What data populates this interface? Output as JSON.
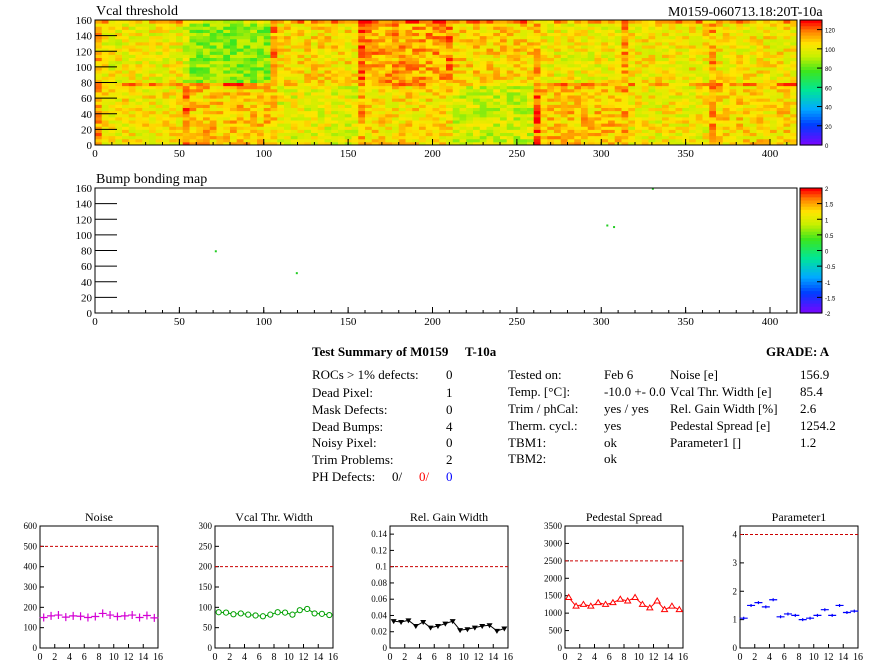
{
  "header": {
    "module_id": "M0159-060713.18:20T-10a"
  },
  "colors": {
    "red": "#ff0000",
    "blue": "#0000ff",
    "magenta": "#d400d4",
    "green": "#00a000",
    "black": "#000000",
    "dashed": "#cc0000"
  },
  "summary": {
    "title": "Test Summary of M0159",
    "temp_tag": "T-10a",
    "grade": "GRADE:  A",
    "left": [
      {
        "label": "ROCs > 1% defects:",
        "value": "0"
      },
      {
        "label": "Dead Pixel:",
        "value": "1"
      },
      {
        "label": "Mask Defects:",
        "value": "0"
      },
      {
        "label": "Dead Bumps:",
        "value": "4"
      },
      {
        "label": "Noisy Pixel:",
        "value": "0"
      },
      {
        "label": "Trim Problems:",
        "value": "2"
      }
    ],
    "ph": {
      "label": "PH Defects:",
      "v1": "0/",
      "v2": "0/",
      "v3": "0"
    },
    "middle": [
      {
        "label": "Tested on:",
        "value": "Feb 6"
      },
      {
        "label": "Temp. [°C]:",
        "value": "-10.0 +- 0.0"
      },
      {
        "label": "Trim / phCal:",
        "value": "yes / yes"
      },
      {
        "label": "Therm. cycl.:",
        "value": "yes"
      },
      {
        "label": "TBM1:",
        "value": "ok"
      },
      {
        "label": "TBM2:",
        "value": "ok"
      }
    ],
    "right": [
      {
        "label": "Noise [e]",
        "value": "156.9"
      },
      {
        "label": "Vcal Thr. Width [e]",
        "value": "85.4"
      },
      {
        "label": "Rel. Gain Width [%]",
        "value": "2.6"
      },
      {
        "label": "Pedestal Spread [e]",
        "value": "1254.2"
      },
      {
        "label": "Parameter1 []",
        "value": "1.2"
      }
    ]
  },
  "chart_data": [
    {
      "type": "heatmap",
      "title": "Vcal threshold",
      "xlim": [
        0,
        416
      ],
      "ylim": [
        0,
        160
      ],
      "xticks": [
        "0",
        "50",
        "100",
        "150",
        "200",
        "250",
        "300",
        "350",
        "400"
      ],
      "yticks": [
        "0",
        "20",
        "40",
        "60",
        "80",
        "100",
        "120",
        "140",
        "160"
      ],
      "zlim": [
        0,
        130
      ],
      "zticks": [
        "0",
        "20",
        "40",
        "60",
        "80",
        "100",
        "120"
      ],
      "roc_means": [
        [
          104,
          110,
          100,
          106,
          96,
          110,
          103,
          107
        ],
        [
          102,
          86,
          106,
          114,
          108,
          102,
          104,
          104
        ]
      ]
    },
    {
      "type": "heatmap",
      "title": "Bump bonding map",
      "xlim": [
        0,
        416
      ],
      "ylim": [
        0,
        160
      ],
      "xticks": [
        "0",
        "50",
        "100",
        "150",
        "200",
        "250",
        "300",
        "350",
        "400"
      ],
      "yticks": [
        "0",
        "20",
        "40",
        "60",
        "80",
        "100",
        "120",
        "140",
        "160"
      ],
      "zlim": [
        -2,
        2
      ],
      "zticks": [
        "-2",
        "-1.5",
        "-1",
        "-0.5",
        "0",
        "0.5",
        "1",
        "1.5",
        "2"
      ],
      "points": [
        [
          71,
          79
        ],
        [
          119,
          51
        ],
        [
          303,
          112
        ],
        [
          307,
          110
        ],
        [
          330,
          159
        ]
      ]
    },
    {
      "type": "scatter",
      "title": "Noise",
      "x": [
        0,
        1,
        2,
        3,
        4,
        5,
        6,
        7,
        8,
        9,
        10,
        11,
        12,
        13,
        14,
        15
      ],
      "y": [
        150,
        158,
        162,
        152,
        158,
        156,
        150,
        155,
        170,
        162,
        155,
        158,
        162,
        150,
        160,
        148
      ],
      "xlim": [
        0,
        16
      ],
      "ylim": [
        0,
        600
      ],
      "xticks": [
        "0",
        "2",
        "4",
        "6",
        "8",
        "10",
        "12",
        "14",
        "16"
      ],
      "yticks": [
        "0",
        "100",
        "200",
        "300",
        "400",
        "500",
        "600"
      ],
      "threshold": 500,
      "marker": "plus",
      "color": "#d400d4"
    },
    {
      "type": "line",
      "title": "Vcal Thr. Width",
      "x": [
        0,
        1,
        2,
        3,
        4,
        5,
        6,
        7,
        8,
        9,
        10,
        11,
        12,
        13,
        14,
        15
      ],
      "y": [
        88,
        87,
        83,
        85,
        82,
        80,
        78,
        82,
        88,
        87,
        82,
        93,
        96,
        85,
        84,
        81
      ],
      "xlim": [
        0,
        16
      ],
      "ylim": [
        0,
        300
      ],
      "xticks": [
        "0",
        "2",
        "4",
        "6",
        "8",
        "10",
        "12",
        "14",
        "16"
      ],
      "yticks": [
        "0",
        "50",
        "100",
        "150",
        "200",
        "250",
        "300"
      ],
      "threshold": 200,
      "marker": "circle",
      "color": "#00a000"
    },
    {
      "type": "line",
      "title": "Rel. Gain Width",
      "x": [
        0,
        1,
        2,
        3,
        4,
        5,
        6,
        7,
        8,
        9,
        10,
        11,
        12,
        13,
        14,
        15
      ],
      "y": [
        0.033,
        0.032,
        0.034,
        0.027,
        0.032,
        0.025,
        0.027,
        0.03,
        0.033,
        0.022,
        0.023,
        0.025,
        0.027,
        0.028,
        0.021,
        0.024
      ],
      "xlim": [
        0,
        16
      ],
      "ylim": [
        0,
        0.15
      ],
      "xticks": [
        "0",
        "2",
        "4",
        "6",
        "8",
        "10",
        "12",
        "14",
        "16"
      ],
      "yticks": [
        "0",
        "0.02",
        "0.04",
        "0.06",
        "0.08",
        "0.1",
        "0.12",
        "0.14"
      ],
      "threshold": 0.1,
      "marker": "triangle-down",
      "color": "#000000"
    },
    {
      "type": "line",
      "title": "Pedestal Spread",
      "x": [
        0,
        1,
        2,
        3,
        4,
        5,
        6,
        7,
        8,
        9,
        10,
        11,
        12,
        13,
        14,
        15
      ],
      "y": [
        1450,
        1200,
        1250,
        1200,
        1300,
        1250,
        1300,
        1400,
        1350,
        1450,
        1250,
        1150,
        1350,
        1100,
        1200,
        1100
      ],
      "xlim": [
        0,
        16
      ],
      "ylim": [
        0,
        3500
      ],
      "xticks": [
        "0",
        "2",
        "4",
        "6",
        "8",
        "10",
        "12",
        "14",
        "16"
      ],
      "yticks": [
        "0",
        "500",
        "1000",
        "1500",
        "2000",
        "2500",
        "3000",
        "3500"
      ],
      "threshold": 2500,
      "marker": "triangle-up",
      "color": "#ff0000"
    },
    {
      "type": "scatter",
      "title": "Parameter1",
      "x": [
        0,
        1,
        2,
        3,
        4,
        5,
        6,
        7,
        8,
        9,
        10,
        11,
        12,
        13,
        14,
        15
      ],
      "y": [
        1.05,
        1.5,
        1.6,
        1.45,
        1.7,
        1.1,
        1.2,
        1.15,
        1.0,
        1.05,
        1.15,
        1.35,
        1.15,
        1.5,
        1.25,
        1.3
      ],
      "xlim": [
        0,
        16
      ],
      "ylim": [
        0,
        4.3
      ],
      "xticks": [
        "0",
        "2",
        "4",
        "6",
        "8",
        "10",
        "12",
        "14",
        "16"
      ],
      "yticks": [
        "0",
        "1",
        "2",
        "3",
        "4"
      ],
      "threshold": 4,
      "marker": "dash",
      "color": "#0000ff"
    }
  ]
}
